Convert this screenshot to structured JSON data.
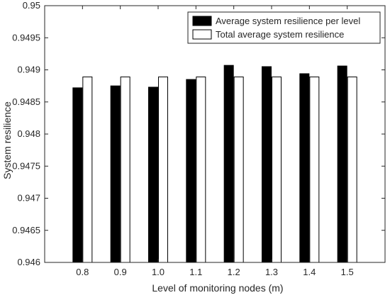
{
  "chart_data": {
    "type": "bar",
    "title": "",
    "xlabel": "Level of monitoring nodes (m)",
    "ylabel": "System resilience",
    "categories": [
      "0.8",
      "0.9",
      "1.0",
      "1.1",
      "1.2",
      "1.3",
      "1.4",
      "1.5"
    ],
    "series": [
      {
        "name": "Average system resilience per level",
        "color": "#000000",
        "values": [
          0.94872,
          0.94875,
          0.94873,
          0.94885,
          0.94907,
          0.94905,
          0.94894,
          0.94906
        ]
      },
      {
        "name": "Total average system resilience",
        "color": "#ffffff",
        "values": [
          0.94889,
          0.94889,
          0.94889,
          0.94889,
          0.94889,
          0.94889,
          0.94889,
          0.94889
        ]
      }
    ],
    "ylim": [
      0.946,
      0.95
    ],
    "yticks": [
      "0.946",
      "0.9465",
      "0.947",
      "0.9475",
      "0.948",
      "0.9485",
      "0.949",
      "0.9495",
      "0.95"
    ],
    "grid": false,
    "legend_position": "top-right"
  }
}
